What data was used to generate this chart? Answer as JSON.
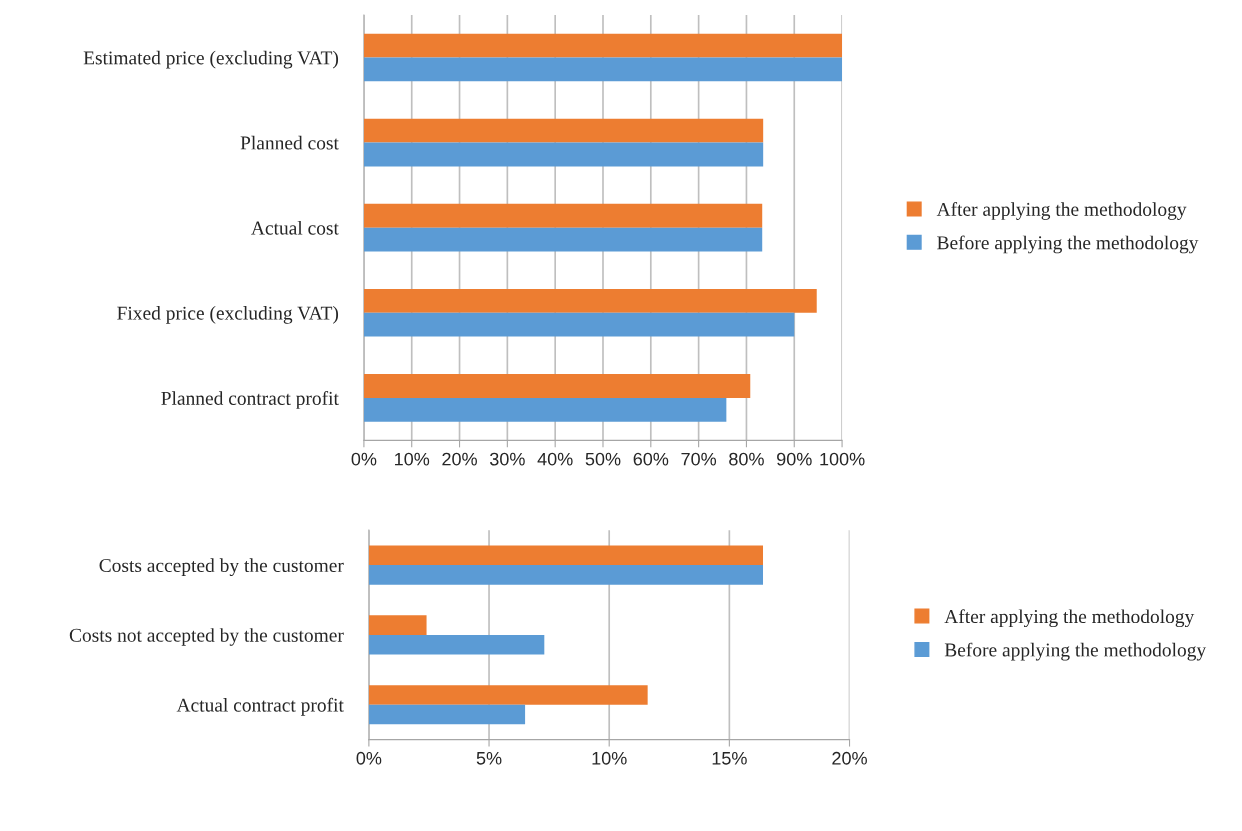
{
  "chart_data": [
    {
      "type": "bar",
      "orientation": "horizontal",
      "categories": [
        "Estimated price (excluding VAT)",
        "Planned cost",
        "Actual cost",
        "Fixed price (excluding VAT)",
        "Planned contract profit"
      ],
      "series": [
        {
          "name": "After applying the methodology",
          "color": "#ed7d31",
          "values": [
            100,
            83.5,
            83.3,
            94.7,
            80.8
          ]
        },
        {
          "name": "Before applying the methodology",
          "color": "#5b9bd5",
          "values": [
            100,
            83.5,
            83.3,
            90,
            75.8
          ]
        }
      ],
      "xlim": [
        0,
        100
      ],
      "xticks": [
        {
          "value": 0,
          "label": "0%"
        },
        {
          "value": 10,
          "label": "10%"
        },
        {
          "value": 20,
          "label": "20%"
        },
        {
          "value": 30,
          "label": "30%"
        },
        {
          "value": 40,
          "label": "40%"
        },
        {
          "value": 50,
          "label": "50%"
        },
        {
          "value": 60,
          "label": "60%"
        },
        {
          "value": 70,
          "label": "70%"
        },
        {
          "value": 80,
          "label": "80%"
        },
        {
          "value": 90,
          "label": "90%"
        },
        {
          "value": 100,
          "label": "100%"
        }
      ],
      "grid": "x",
      "legend": "right"
    },
    {
      "type": "bar",
      "orientation": "horizontal",
      "categories": [
        "Costs accepted by the customer",
        "Costs not accepted by the customer",
        "Actual contract profit"
      ],
      "series": [
        {
          "name": "After applying the methodology",
          "color": "#ed7d31",
          "values": [
            16.4,
            2.4,
            11.6
          ]
        },
        {
          "name": "Before applying the methodology",
          "color": "#5b9bd5",
          "values": [
            16.4,
            7.3,
            6.5
          ]
        }
      ],
      "xlim": [
        0,
        20
      ],
      "xticks": [
        {
          "value": 0,
          "label": "0%"
        },
        {
          "value": 5,
          "label": "5%"
        },
        {
          "value": 10,
          "label": "10%"
        },
        {
          "value": 15,
          "label": "15%"
        },
        {
          "value": 20,
          "label": "20%"
        }
      ],
      "grid": "x",
      "legend": "right"
    }
  ]
}
